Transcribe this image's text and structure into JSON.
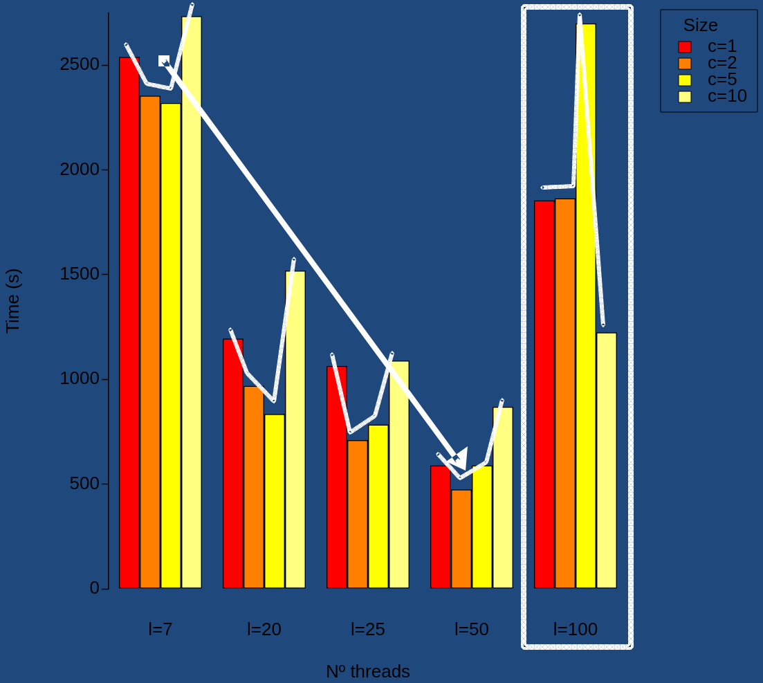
{
  "chart_data": {
    "type": "bar",
    "xlabel": "Nº threads",
    "ylabel": "Time (s)",
    "legend_title": "Size",
    "legend": "top right",
    "categories": [
      "l=7",
      "l=20",
      "l=25",
      "l=50",
      "l=100"
    ],
    "series": [
      {
        "name": "c=1",
        "color": "#ff0000",
        "values": [
          2540,
          1195,
          1065,
          590,
          1855
        ]
      },
      {
        "name": "c=2",
        "color": "#ff8000",
        "values": [
          2355,
          970,
          710,
          475,
          1865
        ]
      },
      {
        "name": "c=5",
        "color": "#ffff00",
        "values": [
          2320,
          835,
          785,
          590,
          2700
        ]
      },
      {
        "name": "c=10",
        "color": "#ffff80",
        "values": [
          2735,
          1520,
          1090,
          870,
          1225
        ]
      }
    ],
    "ylim": [
      0,
      2750
    ],
    "yticks": [
      0,
      500,
      1000,
      1500,
      2000,
      2500
    ],
    "grid": false
  }
}
